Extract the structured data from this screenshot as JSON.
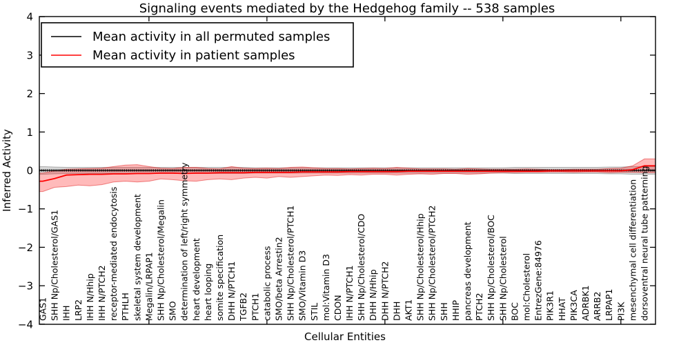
{
  "title": "Signaling events mediated by the Hedgehog family -- 538 samples",
  "axes": {
    "xlabel": "Cellular Entities",
    "ylabel": "Inferred Activity",
    "ytick_labels": [
      "−4",
      "−3",
      "−2",
      "−1",
      "0",
      "1",
      "2",
      "3",
      "4"
    ]
  },
  "colors": {
    "permuted_line": "#000000",
    "patient_line": "#ff0000",
    "permuted_band": "rgba(0,0,0,0.16)",
    "patient_band": "rgba(255,0,0,0.27)",
    "patient_band_edge": "rgba(220,0,0,0.45)",
    "permuted_band_edge": "rgba(0,0,0,0.25)"
  },
  "chart_data": {
    "type": "line",
    "title": "Signaling events mediated by the Hedgehog family -- 538 samples",
    "xlabel": "Cellular Entities",
    "ylabel": "Inferred Activity",
    "ylim": [
      -4,
      4
    ],
    "yticks": [
      -4,
      -3,
      -2,
      -1,
      0,
      1,
      2,
      3,
      4
    ],
    "xticks_every": 10,
    "grid": false,
    "legend_position": "upper left",
    "categories": [
      "GAS1",
      "SHH Np/Cholesterol/GAS1",
      "IHH",
      "LRP2",
      "IHH N/Hhip",
      "IHH N/PTCH2",
      "receptor-mediated endocytosis",
      "PTHLH",
      "skeletal system development",
      "Megalin/LRPAP1",
      "SHH Np/Cholesterol/Megalin",
      "SMO",
      "determination of left/right symmetry",
      "heart development",
      "heart looping",
      "somite specification",
      "DHH N/PTCH1",
      "TGFB2",
      "PTCH1",
      "catabolic process",
      "SMO/beta Arrestin2",
      "SHH Np/Cholesterol/PTCH1",
      "SMO/Vitamin D3",
      "STIL",
      "mol:Vitamin D3",
      "CDON",
      "IHH N/PTCH1",
      "SHH Np/Cholesterol/CDO",
      "DHH N/Hhip",
      "DHH N/PTCH2",
      "DHH",
      "AKT1",
      "SHH Np/Cholesterol/Hhip",
      "SHH Np/Cholesterol/PTCH2",
      "SHH",
      "HHIP",
      "pancreas development",
      "PTCH2",
      "SHH Np/Cholesterol/BOC",
      "SHH Np/Cholesterol",
      "BOC",
      "mol:Cholesterol",
      "EntrezGene:84976",
      "PIK3R1",
      "HHAT",
      "PIK3CA",
      "ADRBK1",
      "ARRB2",
      "LRPAP1",
      "PI3K",
      "mesenchymal cell differentiation",
      "dorsoventral neural tube patterning"
    ],
    "series": [
      {
        "name": "Mean activity in all permuted samples",
        "color": "#000000",
        "values": [
          0,
          0,
          0,
          0,
          0,
          0,
          0,
          0,
          0,
          0,
          0,
          0,
          0,
          0,
          0,
          0,
          0,
          0,
          0,
          0,
          0,
          0,
          0,
          0,
          0,
          0,
          0,
          0,
          0,
          0,
          0,
          0,
          0,
          0,
          0,
          0,
          0,
          0,
          0,
          0,
          0,
          0,
          0,
          0,
          0,
          0,
          0,
          0,
          0,
          0,
          0,
          0
        ],
        "band_hi": [
          0.1,
          0.09,
          0.08,
          0.08,
          0.08,
          0.08,
          0.08,
          0.08,
          0.08,
          0.08,
          0.08,
          0.08,
          0.08,
          0.08,
          0.08,
          0.08,
          0.08,
          0.08,
          0.07,
          0.07,
          0.07,
          0.07,
          0.07,
          0.07,
          0.07,
          0.07,
          0.07,
          0.07,
          0.07,
          0.07,
          0.07,
          0.07,
          0.07,
          0.07,
          0.07,
          0.07,
          0.07,
          0.07,
          0.07,
          0.07,
          0.08,
          0.08,
          0.08,
          0.08,
          0.08,
          0.08,
          0.08,
          0.08,
          0.09,
          0.09,
          0.1,
          0.1
        ],
        "band_lo": [
          -0.1,
          -0.09,
          -0.08,
          -0.08,
          -0.08,
          -0.08,
          -0.08,
          -0.08,
          -0.08,
          -0.08,
          -0.08,
          -0.08,
          -0.08,
          -0.08,
          -0.08,
          -0.08,
          -0.08,
          -0.08,
          -0.07,
          -0.07,
          -0.07,
          -0.07,
          -0.07,
          -0.07,
          -0.07,
          -0.07,
          -0.07,
          -0.07,
          -0.07,
          -0.07,
          -0.07,
          -0.07,
          -0.07,
          -0.07,
          -0.07,
          -0.07,
          -0.07,
          -0.07,
          -0.07,
          -0.07,
          -0.08,
          -0.08,
          -0.08,
          -0.08,
          -0.08,
          -0.08,
          -0.08,
          -0.08,
          -0.09,
          -0.09,
          -0.1,
          -0.1
        ]
      },
      {
        "name": "Mean activity in patient samples",
        "color": "#ff0000",
        "values": [
          -0.28,
          -0.21,
          -0.12,
          -0.11,
          -0.1,
          -0.1,
          -0.09,
          -0.09,
          -0.08,
          -0.08,
          -0.07,
          -0.07,
          -0.08,
          -0.07,
          -0.07,
          -0.06,
          -0.06,
          -0.06,
          -0.05,
          -0.05,
          -0.05,
          -0.05,
          -0.04,
          -0.04,
          -0.04,
          -0.04,
          -0.03,
          -0.03,
          -0.03,
          -0.03,
          -0.03,
          -0.02,
          -0.02,
          -0.02,
          -0.02,
          -0.02,
          -0.02,
          -0.02,
          -0.02,
          -0.02,
          -0.02,
          -0.02,
          -0.02,
          -0.01,
          -0.01,
          -0.01,
          -0.01,
          -0.01,
          -0.01,
          -0.01,
          0.02,
          0.12
        ],
        "band_hi": [
          -0.07,
          -0.01,
          0.03,
          0.04,
          0.05,
          0.06,
          0.1,
          0.14,
          0.15,
          0.1,
          0.06,
          0.05,
          0.08,
          0.08,
          0.05,
          0.04,
          0.1,
          0.06,
          0.05,
          0.06,
          0.05,
          0.08,
          0.09,
          0.07,
          0.05,
          0.05,
          0.04,
          0.05,
          0.06,
          0.05,
          0.08,
          0.06,
          0.04,
          0.04,
          0.04,
          0.03,
          0.05,
          0.04,
          0.03,
          0.03,
          0.03,
          0.04,
          0.03,
          0.02,
          0.02,
          0.03,
          0.03,
          0.03,
          0.05,
          0.06,
          0.12,
          0.3
        ],
        "band_lo": [
          -0.55,
          -0.44,
          -0.42,
          -0.38,
          -0.4,
          -0.37,
          -0.3,
          -0.28,
          -0.3,
          -0.28,
          -0.22,
          -0.24,
          -0.27,
          -0.28,
          -0.24,
          -0.22,
          -0.24,
          -0.2,
          -0.18,
          -0.2,
          -0.16,
          -0.18,
          -0.16,
          -0.14,
          -0.12,
          -0.13,
          -0.11,
          -0.12,
          -0.1,
          -0.1,
          -0.12,
          -0.1,
          -0.09,
          -0.1,
          -0.08,
          -0.08,
          -0.1,
          -0.09,
          -0.07,
          -0.06,
          -0.06,
          -0.05,
          -0.05,
          -0.04,
          -0.04,
          -0.05,
          -0.04,
          -0.04,
          -0.06,
          -0.05,
          -0.05,
          -0.06
        ]
      }
    ]
  }
}
